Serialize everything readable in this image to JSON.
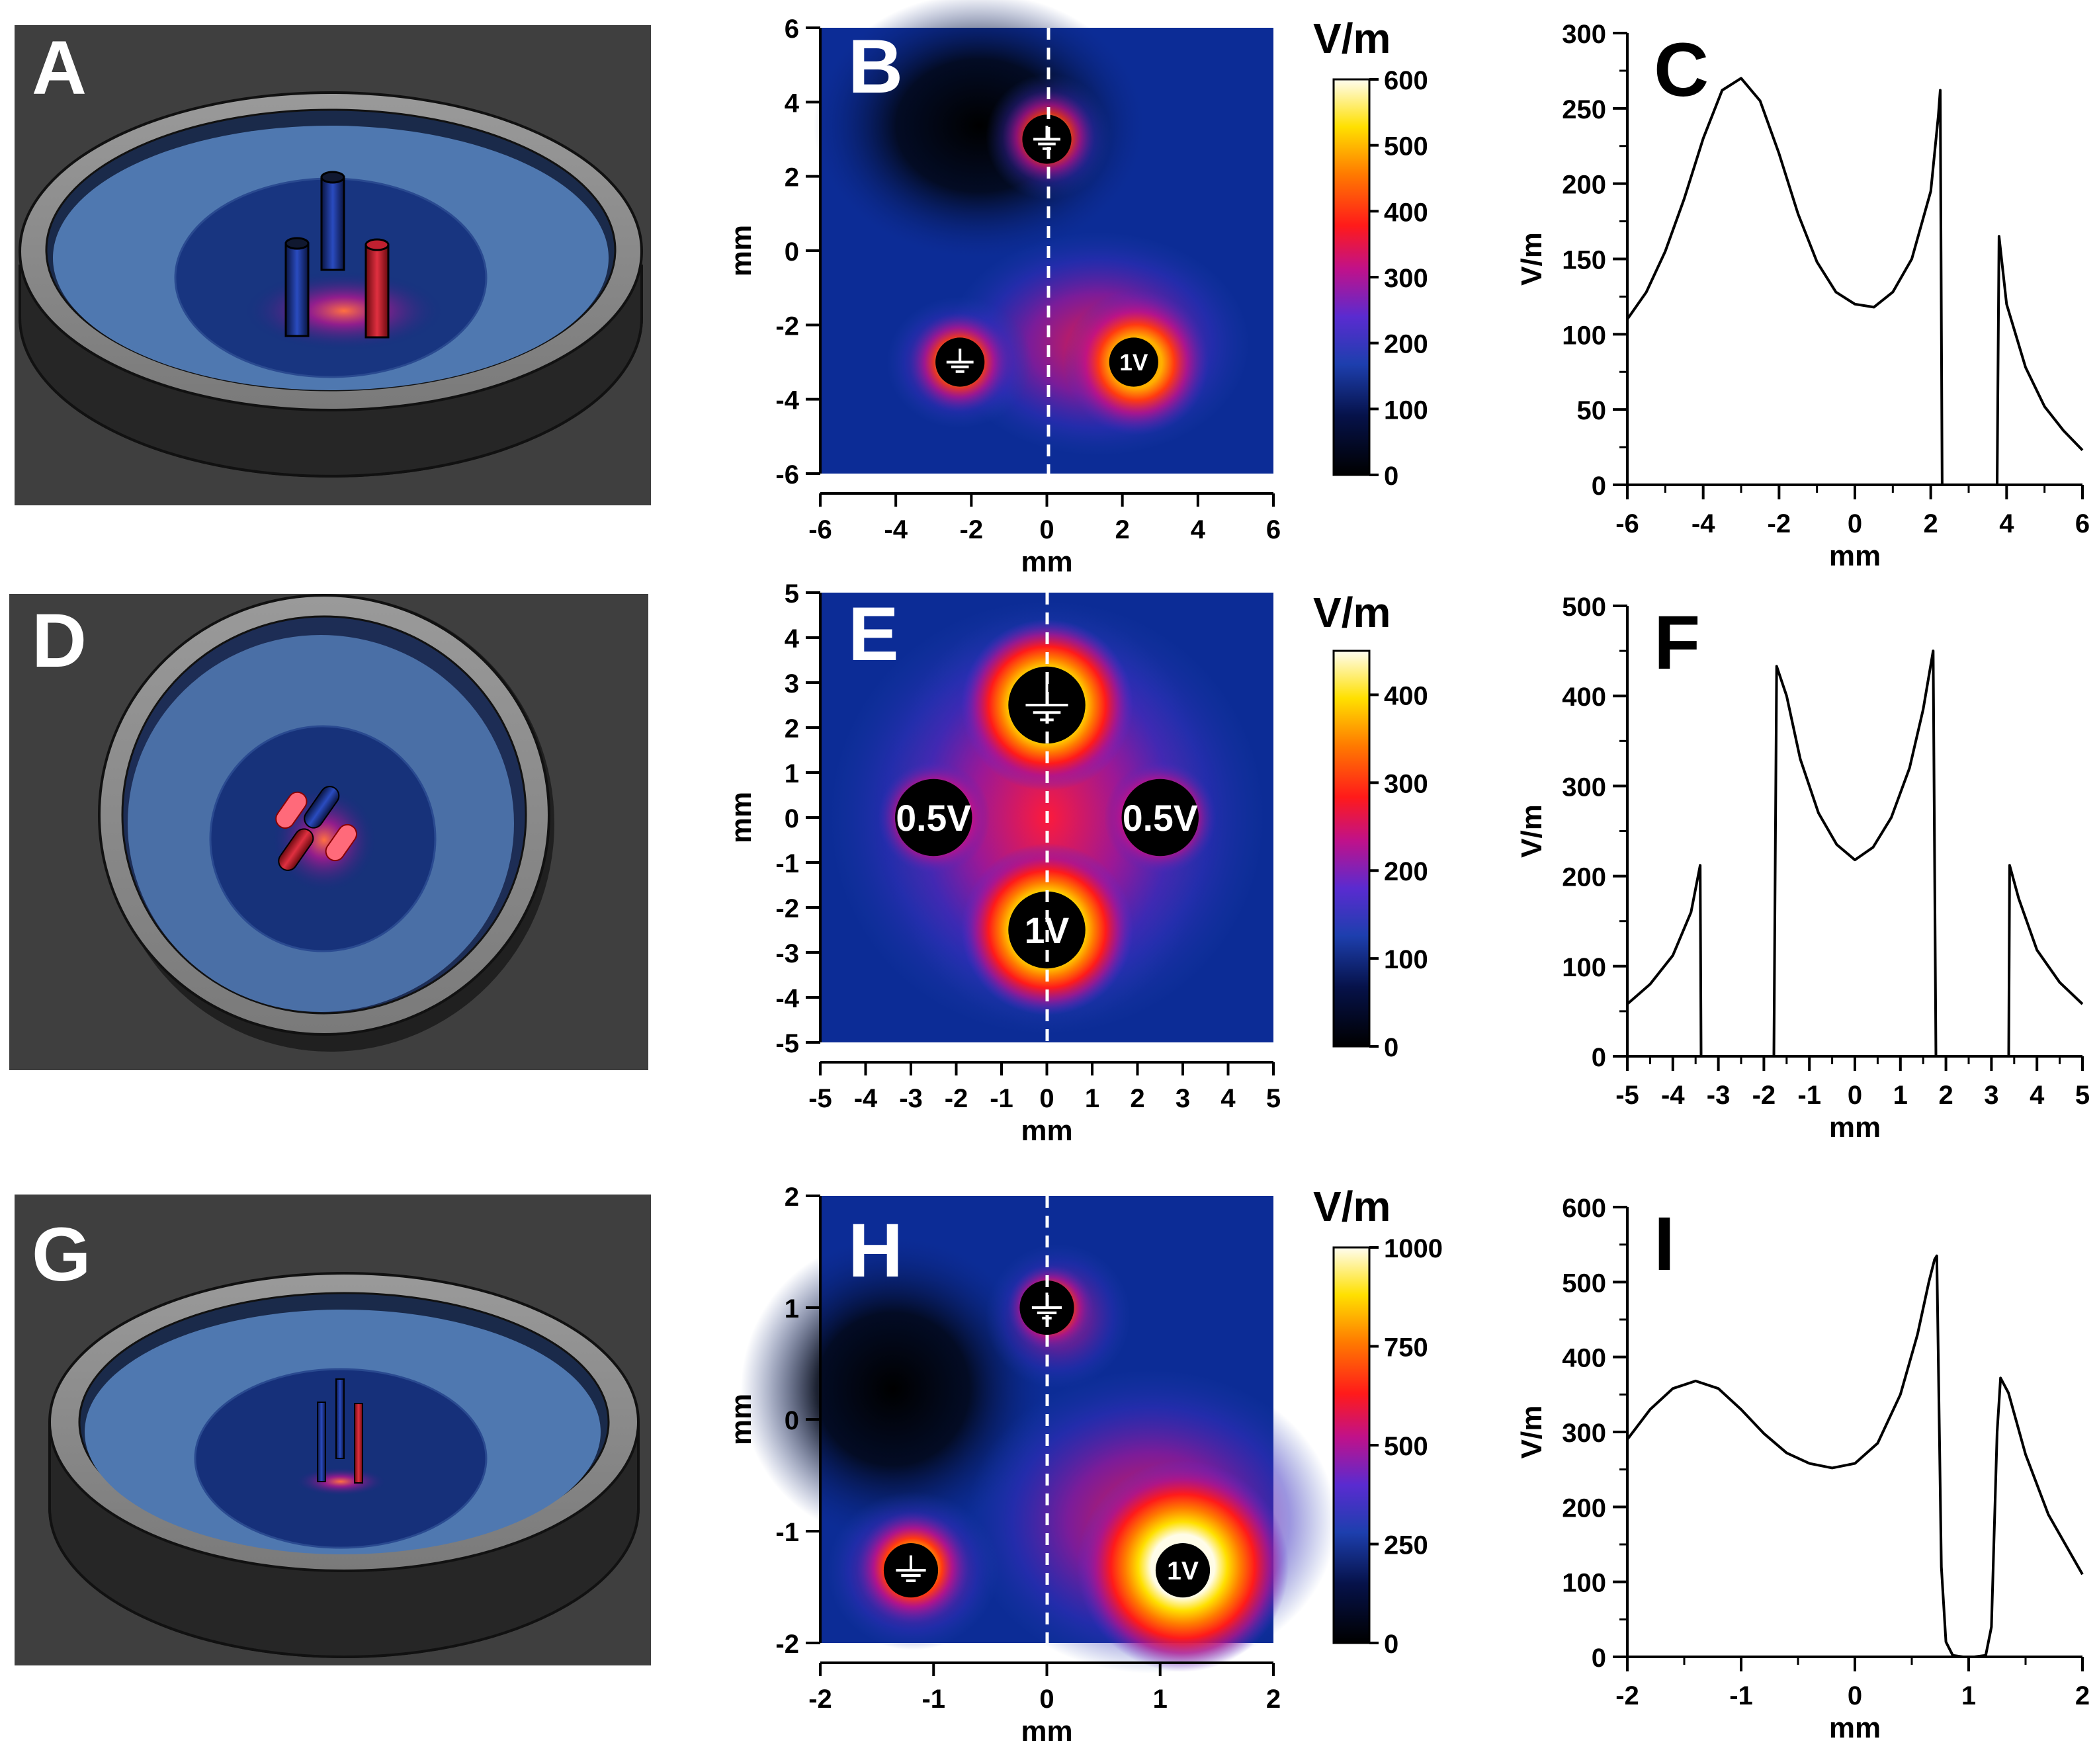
{
  "panels_3d": [
    {
      "label": "A"
    },
    {
      "label": "D"
    },
    {
      "label": "G"
    }
  ],
  "heatmaps": [
    {
      "label": "B",
      "xlabel": "mm",
      "ylabel": "mm",
      "range": [
        -6,
        6
      ],
      "xticks": [
        -6,
        -4,
        -2,
        0,
        2,
        4,
        6
      ],
      "yticks": [
        -6,
        -4,
        -2,
        0,
        2,
        4,
        6
      ],
      "colorbar": {
        "unit": "V/m",
        "max": 600,
        "ticks": [
          0,
          100,
          200,
          300,
          400,
          500,
          600
        ]
      },
      "electrodes": [
        {
          "x": 0.0,
          "y": 3.0,
          "r": 0.65,
          "label": "ground-symbol",
          "role": "ground"
        },
        {
          "x": -2.3,
          "y": -3.0,
          "r": 0.65,
          "label": "ground-symbol",
          "role": "ground"
        },
        {
          "x": 2.3,
          "y": -3.0,
          "r": 0.65,
          "label": "1V",
          "role": "1V"
        }
      ]
    },
    {
      "label": "E",
      "xlabel": "mm",
      "ylabel": "mm",
      "range": [
        -5,
        5
      ],
      "xticks": [
        -5,
        -4,
        -3,
        -2,
        -1,
        0,
        1,
        2,
        3,
        4,
        5
      ],
      "yticks": [
        -5,
        -4,
        -3,
        -2,
        -1,
        0,
        1,
        2,
        3,
        4,
        5
      ],
      "colorbar": {
        "unit": "V/m",
        "max": 450,
        "ticks": [
          0,
          100,
          200,
          300,
          400
        ]
      },
      "electrodes": [
        {
          "x": 0.0,
          "y": 2.5,
          "r": 0.85,
          "label": "ground-symbol",
          "role": "ground"
        },
        {
          "x": -2.5,
          "y": 0.0,
          "r": 0.85,
          "label": "0.5V",
          "role": "0.5V"
        },
        {
          "x": 2.5,
          "y": 0.0,
          "r": 0.85,
          "label": "0.5V",
          "role": "0.5V"
        },
        {
          "x": 0.0,
          "y": -2.5,
          "r": 0.85,
          "label": "1V",
          "role": "1V"
        }
      ]
    },
    {
      "label": "H",
      "xlabel": "mm",
      "ylabel": "mm",
      "range": [
        -2,
        2
      ],
      "xticks": [
        -2,
        -1,
        0,
        1,
        2
      ],
      "yticks": [
        -2,
        -1,
        0,
        1,
        2
      ],
      "colorbar": {
        "unit": "V/m",
        "max": 1000,
        "ticks": [
          0,
          250,
          500,
          750,
          1000
        ]
      },
      "electrodes": [
        {
          "x": 0.0,
          "y": 1.0,
          "r": 0.24,
          "label": "ground-symbol",
          "role": "ground"
        },
        {
          "x": -1.2,
          "y": -1.35,
          "r": 0.24,
          "label": "ground-symbol",
          "role": "ground"
        },
        {
          "x": 1.2,
          "y": -1.35,
          "r": 0.24,
          "label": "1V",
          "role": "1V"
        }
      ]
    }
  ],
  "chart_data": [
    {
      "type": "line",
      "label": "C",
      "xlabel": "mm",
      "ylabel": "V/m",
      "xlim": [
        -6,
        6
      ],
      "ylim": [
        0,
        300
      ],
      "xticks": [
        -6,
        -4,
        -2,
        0,
        2,
        4,
        6
      ],
      "yticks": [
        0,
        50,
        100,
        150,
        200,
        250,
        300
      ],
      "x": [
        -6,
        -5.5,
        -5,
        -4.5,
        -4,
        -3.5,
        -3,
        -2.5,
        -2,
        -1.5,
        -1,
        -0.5,
        0,
        0.5,
        1,
        1.5,
        2,
        2.2,
        2.25,
        2.3,
        2.4,
        3.5,
        3.75,
        3.8,
        4,
        4.5,
        5,
        5.5,
        6
      ],
      "y": [
        110,
        128,
        155,
        190,
        230,
        262,
        270,
        255,
        220,
        180,
        148,
        128,
        120,
        118,
        128,
        150,
        195,
        245,
        262,
        0,
        0,
        0,
        0,
        165,
        120,
        78,
        52,
        36,
        23
      ]
    },
    {
      "type": "line",
      "label": "F",
      "xlabel": "mm",
      "ylabel": "V/m",
      "xlim": [
        -5,
        5
      ],
      "ylim": [
        0,
        500
      ],
      "xticks": [
        -5,
        -4,
        -3,
        -2,
        -1,
        0,
        1,
        2,
        3,
        4,
        5
      ],
      "yticks": [
        0,
        100,
        200,
        300,
        400,
        500
      ],
      "x": [
        -5,
        -4.5,
        -4,
        -3.6,
        -3.4,
        -3.38,
        -1.78,
        -1.72,
        -1.5,
        -1.2,
        -0.8,
        -0.4,
        0,
        0.4,
        0.8,
        1.2,
        1.5,
        1.72,
        1.78,
        3.38,
        3.4,
        3.6,
        4,
        4.5,
        5
      ],
      "y": [
        58,
        80,
        112,
        160,
        212,
        0,
        0,
        433,
        400,
        330,
        270,
        235,
        218,
        232,
        265,
        320,
        385,
        450,
        0,
        0,
        212,
        175,
        118,
        82,
        58
      ]
    },
    {
      "type": "line",
      "label": "I",
      "xlabel": "mm",
      "ylabel": "V/m",
      "xlim": [
        -2,
        2
      ],
      "ylim": [
        0,
        600
      ],
      "xticks": [
        -2,
        -1,
        0,
        1,
        2
      ],
      "yticks": [
        0,
        100,
        200,
        300,
        400,
        500,
        600
      ],
      "x": [
        -2,
        -1.8,
        -1.6,
        -1.4,
        -1.2,
        -1,
        -0.8,
        -0.6,
        -0.4,
        -0.2,
        0,
        0.2,
        0.4,
        0.55,
        0.65,
        0.7,
        0.72,
        0.76,
        0.8,
        0.86,
        0.95,
        1.05,
        1.15,
        1.2,
        1.25,
        1.28,
        1.35,
        1.5,
        1.7,
        2
      ],
      "y": [
        290,
        330,
        358,
        368,
        358,
        330,
        298,
        272,
        258,
        252,
        258,
        285,
        350,
        430,
        500,
        530,
        535,
        120,
        20,
        2,
        0,
        0,
        2,
        40,
        300,
        372,
        352,
        270,
        190,
        110
      ]
    }
  ]
}
